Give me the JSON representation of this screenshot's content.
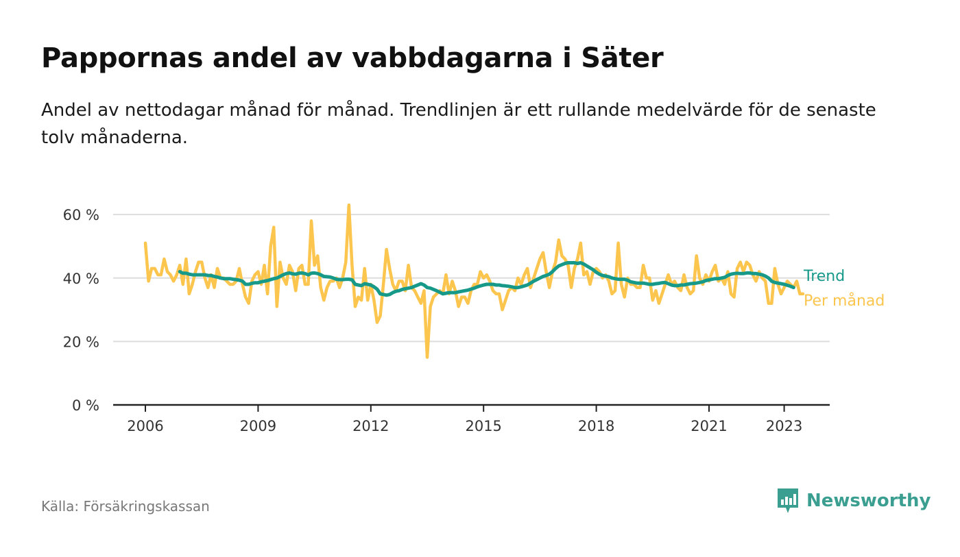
{
  "header": {
    "title": "Pappornas andel av vabbdagarna i Säter",
    "subtitle": "Andel av nettodagar månad för månad. Trendlinjen är ett rullande medelvärde för de senaste tolv månaderna."
  },
  "footer": {
    "source": "Källa: Försäkringskassan",
    "brand": "Newsworthy"
  },
  "colors": {
    "monthly": "#fbc54e",
    "trend": "#17998a",
    "grid": "#dddddd",
    "axis": "#222222",
    "brand": "#3a9e90"
  },
  "chart_data": {
    "type": "line",
    "title": "Pappornas andel av vabbdagarna i Säter",
    "ylim": [
      0,
      65
    ],
    "xlim": [
      "2006-01",
      "2023-06"
    ],
    "y_ticks": [
      {
        "value": 0,
        "label": "0 %"
      },
      {
        "value": 20,
        "label": "20 %"
      },
      {
        "value": 40,
        "label": "40 %"
      },
      {
        "value": 60,
        "label": "60 %"
      }
    ],
    "x_ticks": [
      {
        "value": "2006-01",
        "label": "2006"
      },
      {
        "value": "2009-01",
        "label": "2009"
      },
      {
        "value": "2012-01",
        "label": "2012"
      },
      {
        "value": "2015-01",
        "label": "2015"
      },
      {
        "value": "2018-01",
        "label": "2018"
      },
      {
        "value": "2021-01",
        "label": "2021"
      },
      {
        "value": "2023-01",
        "label": "2023"
      }
    ],
    "grid": true,
    "legend": "direct labels at right end of lines",
    "series": [
      {
        "name": "Per månad",
        "color": "#fbc54e",
        "start": "2006-01",
        "values": [
          51,
          39,
          43,
          43,
          41,
          41,
          46,
          42,
          41,
          39,
          41,
          44,
          38,
          46,
          35,
          38,
          42,
          45,
          45,
          40,
          37,
          41,
          37,
          43,
          40,
          40,
          39,
          38,
          38,
          39,
          43,
          38,
          34,
          32,
          39,
          41,
          42,
          38,
          44,
          35,
          50,
          56,
          31,
          45,
          40,
          38,
          44,
          42,
          36,
          43,
          44,
          38,
          38,
          58,
          44,
          47,
          37,
          33,
          37,
          39,
          39,
          40,
          37,
          40,
          45,
          63,
          44,
          31,
          34,
          33,
          43,
          33,
          38,
          33,
          26,
          28,
          38,
          49,
          43,
          38,
          36,
          39,
          39,
          36,
          44,
          37,
          36,
          34,
          32,
          36,
          15,
          31,
          34,
          35,
          36,
          35,
          41,
          35,
          39,
          36,
          31,
          34,
          34,
          32,
          36,
          38,
          38,
          42,
          40,
          41,
          39,
          36,
          35,
          35,
          30,
          33,
          36,
          37,
          36,
          40,
          38,
          41,
          43,
          37,
          40,
          43,
          46,
          48,
          42,
          37,
          42,
          45,
          52,
          47,
          46,
          44,
          37,
          43,
          46,
          51,
          41,
          42,
          38,
          42,
          43,
          42,
          40,
          41,
          39,
          35,
          36,
          51,
          38,
          34,
          40,
          38,
          38,
          37,
          37,
          44,
          40,
          40,
          33,
          36,
          32,
          35,
          38,
          41,
          38,
          39,
          37,
          36,
          41,
          37,
          35,
          36,
          47,
          40,
          38,
          41,
          39,
          42,
          44,
          39,
          40,
          38,
          42,
          35,
          34,
          43,
          45,
          42,
          45,
          44,
          41,
          39,
          42,
          40,
          39,
          32,
          32,
          43,
          38,
          35,
          37,
          39,
          38,
          37,
          39,
          35,
          35
        ]
      },
      {
        "name": "Trend",
        "color": "#17998a",
        "start": "2006-12",
        "values": [
          42,
          41.5,
          41.5,
          41.2,
          41,
          41,
          41,
          41,
          41,
          40.8,
          40.8,
          40.5,
          40.3,
          40,
          39.8,
          39.8,
          39.8,
          39.6,
          39.5,
          39.3,
          39,
          38,
          38,
          38.3,
          38.5,
          38.5,
          38.8,
          39,
          39.2,
          39.5,
          39.8,
          40,
          40.5,
          41,
          41.4,
          41.6,
          41.3,
          41.2,
          41.5,
          41.6,
          41.4,
          41,
          41.5,
          41.6,
          41.4,
          41,
          40.5,
          40.4,
          40.3,
          40,
          39.6,
          39.5,
          39.5,
          39.6,
          39.6,
          39.4,
          38,
          37.8,
          37.6,
          38.2,
          38,
          37.8,
          37.2,
          36.5,
          35,
          34.8,
          34.6,
          34.8,
          35.4,
          35.8,
          36,
          36.4,
          36.6,
          36.8,
          37,
          37.4,
          37.8,
          38.2,
          37.8,
          37,
          36.8,
          36.4,
          36,
          35.5,
          35,
          35.2,
          35.4,
          35.4,
          35.4,
          35.6,
          35.8,
          36,
          36.2,
          36.5,
          36.8,
          37.2,
          37.5,
          37.8,
          38,
          38,
          38,
          37.8,
          37.8,
          37.6,
          37.5,
          37.4,
          37.2,
          37,
          37,
          37.2,
          37.5,
          37.8,
          38.4,
          39,
          39.5,
          40,
          40.5,
          40.8,
          41.2,
          42,
          43,
          43.8,
          44.2,
          44.6,
          44.8,
          44.8,
          44.8,
          44.6,
          44.8,
          44.4,
          43.8,
          43.2,
          42.6,
          41.8,
          41.2,
          40.8,
          40.6,
          40.4,
          40,
          39.8,
          39.6,
          39.6,
          39.6,
          39.3,
          38.8,
          38.6,
          38.4,
          38.4,
          38.4,
          38.2,
          38,
          38,
          38.2,
          38.3,
          38.5,
          38.6,
          38.2,
          37.8,
          37.6,
          37.6,
          37.8,
          37.8,
          38,
          38.2,
          38.3,
          38.4,
          38.6,
          38.8,
          39.2,
          39.4,
          39.6,
          39.8,
          39.8,
          40,
          40.2,
          40.8,
          41.2,
          41.4,
          41.5,
          41.4,
          41.4,
          41.6,
          41.6,
          41.4,
          41.4,
          41.2,
          41,
          40.6,
          40,
          39,
          38.6,
          38.4,
          38.2,
          38,
          37.7,
          37.4,
          37
        ]
      }
    ]
  }
}
